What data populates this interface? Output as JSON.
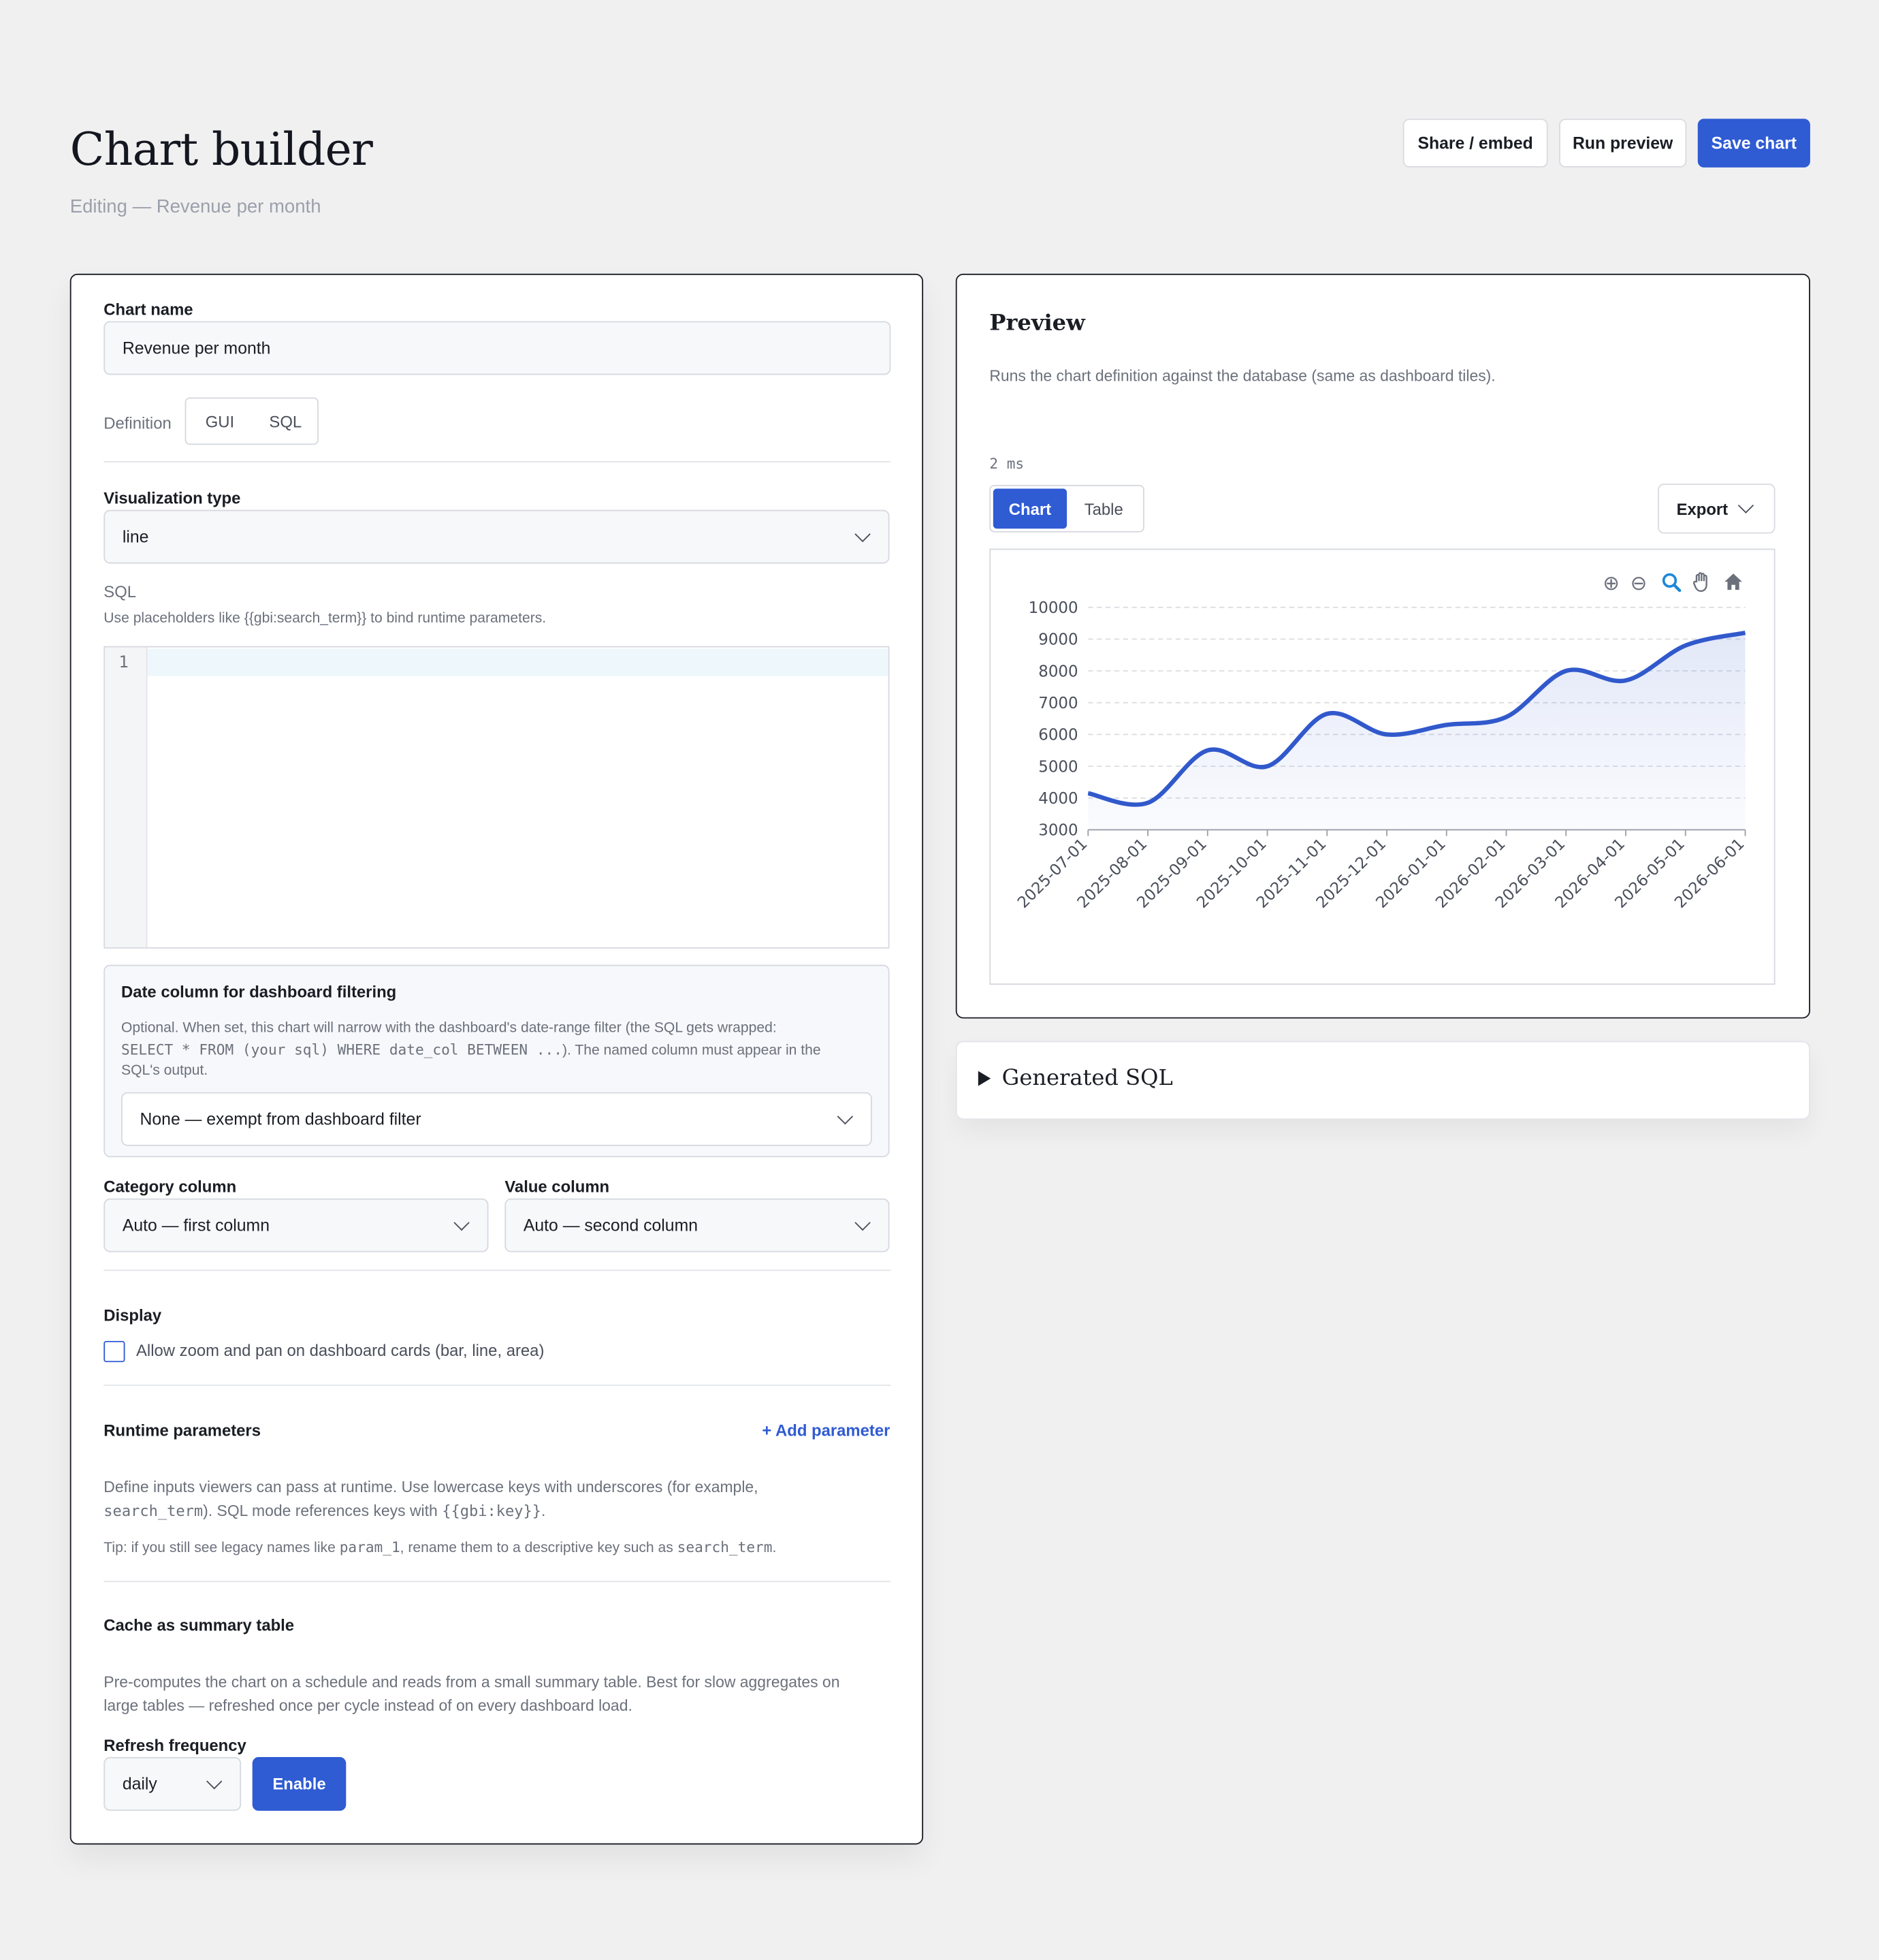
{
  "header": {
    "title": "Chart builder",
    "subtitle": "Editing — Revenue per month",
    "buttons": {
      "share": "Share / embed",
      "run": "Run preview",
      "save": "Save chart"
    }
  },
  "form": {
    "chart_name_label": "Chart name",
    "chart_name_value": "Revenue per month",
    "definition_label": "Definition",
    "definition_options": [
      "GUI",
      "SQL"
    ],
    "viz_label": "Visualization type",
    "viz_value": "line",
    "sql_label": "SQL",
    "sql_hint": "Use placeholders like {{gbi:search_term}} to bind runtime parameters.",
    "editor_line": "1",
    "date_col": {
      "title": "Date column for dashboard filtering",
      "desc_1": "Optional. When set, this chart will narrow with the dashboard's date-range filter (the SQL gets wrapped:",
      "desc_code": "SELECT * FROM (your sql) WHERE date_col BETWEEN ...",
      "desc_2": "). The named column must appear in the",
      "desc_3": "SQL's output.",
      "select_value": "None — exempt from dashboard filter"
    },
    "category_label": "Category column",
    "category_value": "Auto — first column",
    "value_label": "Value column",
    "value_value": "Auto — second column",
    "display_label": "Display",
    "zoom_checkbox_label": "Allow zoom and pan on dashboard cards (bar, line, area)",
    "runtime": {
      "title": "Runtime parameters",
      "add": "+ Add parameter",
      "desc_1": "Define inputs viewers can pass at runtime. Use lowercase keys with underscores (for example,",
      "desc_code_1": "search_term",
      "desc_2": "). SQL mode references keys with",
      "desc_code_2": "{{gbi:key}}",
      "desc_3": ".",
      "tip_1": "Tip: if you still see legacy names like",
      "tip_code_1": "param_1",
      "tip_2": ", rename them to a descriptive key such as",
      "tip_code_2": "search_term",
      "tip_3": "."
    },
    "cache": {
      "title": "Cache as summary table",
      "desc_1": "Pre-computes the chart on a schedule and reads from a small summary table. Best for slow aggregates on",
      "desc_2": "large tables — refreshed once per cycle instead of on every dashboard load.",
      "refresh_label": "Refresh frequency",
      "refresh_value": "daily",
      "enable": "Enable"
    }
  },
  "preview": {
    "title": "Preview",
    "desc": "Runs the chart definition against the database (same as dashboard tiles).",
    "timing": "2 ms",
    "tabs": [
      "Chart",
      "Table"
    ],
    "export": "Export",
    "generated_sql": "Generated SQL"
  },
  "chart_data": {
    "type": "area",
    "x": [
      "2025-07-01",
      "2025-08-01",
      "2025-09-01",
      "2025-10-01",
      "2025-11-01",
      "2025-12-01",
      "2026-01-01",
      "2026-02-01",
      "2026-03-01",
      "2026-04-01",
      "2026-05-01",
      "2026-06-01"
    ],
    "y_ticks": [
      3000,
      4000,
      5000,
      6000,
      7000,
      8000,
      9000,
      10000
    ],
    "ylim": [
      3000,
      10000
    ],
    "series": [
      {
        "values": [
          4150,
          3850,
          5500,
          5000,
          6650,
          6000,
          6300,
          6550,
          8000,
          7700,
          8800,
          9200
        ]
      }
    ],
    "grid": true,
    "color": "#3159cc"
  }
}
